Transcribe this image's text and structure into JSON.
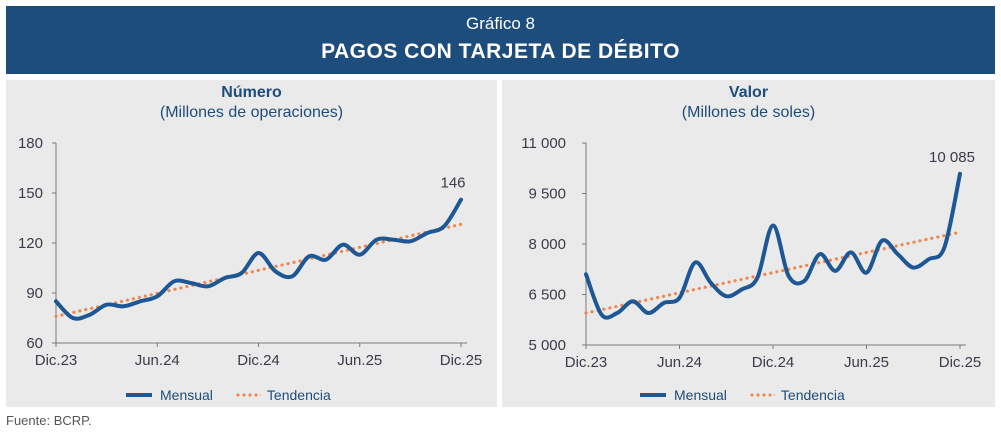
{
  "header": {
    "supertitle": "Gráfico 8",
    "title": "PAGOS CON TARJETA DE DÉBITO"
  },
  "source": "Fuente: BCRP.",
  "colors": {
    "header_bg": "#1d4d7c",
    "mensual": "#1d5795",
    "tendencia": "#f0864f",
    "panel_bg": "#eaeaea"
  },
  "chart_data": [
    {
      "type": "line",
      "title": "Número",
      "subtitle": "(Millones de operaciones)",
      "ylim": [
        60,
        180
      ],
      "yticks": [
        60,
        90,
        120,
        150,
        180
      ],
      "ytick_labels": [
        "60",
        "90",
        "120",
        "150",
        "180"
      ],
      "xtick_labels": [
        "Dic.23",
        "Jun.24",
        "Dic.24",
        "Jun.25",
        "Dic.25"
      ],
      "xtick_positions": [
        0,
        6,
        12,
        18,
        24
      ],
      "end_label": "146",
      "legend": [
        "Mensual",
        "Tendencia"
      ],
      "series": [
        {
          "name": "Mensual",
          "style": "solid",
          "values": [
            85,
            75,
            77,
            83,
            82,
            85,
            88,
            97,
            96,
            94,
            99,
            102,
            114,
            103,
            100,
            112,
            110,
            119,
            113,
            122,
            122,
            121,
            126,
            130,
            146
          ]
        },
        {
          "name": "Tendencia",
          "style": "dotted",
          "values": [
            76,
            78.3,
            80.6,
            82.9,
            85.2,
            87.5,
            89.8,
            92.1,
            94.4,
            96.7,
            99,
            101.3,
            103.6,
            105.9,
            108.2,
            110.5,
            112.8,
            115.1,
            117.4,
            119.7,
            122,
            124.3,
            126.6,
            128.9,
            131.2
          ]
        }
      ]
    },
    {
      "type": "line",
      "title": "Valor",
      "subtitle": "(Millones de soles)",
      "ylim": [
        5000,
        11000
      ],
      "yticks": [
        5000,
        6500,
        8000,
        9500,
        11000
      ],
      "ytick_labels": [
        "5 000",
        "6 500",
        "8 000",
        "9 500",
        "11 000"
      ],
      "xtick_labels": [
        "Dic.23",
        "Jun.24",
        "Dic.24",
        "Jun.25",
        "Dic.25"
      ],
      "xtick_positions": [
        0,
        6,
        12,
        18,
        24
      ],
      "end_label": "10 085",
      "legend": [
        "Mensual",
        "Tendencia"
      ],
      "series": [
        {
          "name": "Mensual",
          "style": "solid",
          "values": [
            7100,
            5900,
            5950,
            6300,
            5950,
            6250,
            6400,
            7450,
            6850,
            6450,
            6650,
            7000,
            8550,
            7050,
            6900,
            7700,
            7200,
            7750,
            7150,
            8100,
            7700,
            7300,
            7550,
            7900,
            10085
          ]
        },
        {
          "name": "Tendencia",
          "style": "dotted",
          "values": [
            5950,
            6050,
            6150,
            6250,
            6350,
            6450,
            6550,
            6650,
            6750,
            6850,
            6950,
            7050,
            7150,
            7250,
            7350,
            7450,
            7550,
            7650,
            7750,
            7850,
            7950,
            8050,
            8150,
            8250,
            8350
          ]
        }
      ]
    }
  ]
}
